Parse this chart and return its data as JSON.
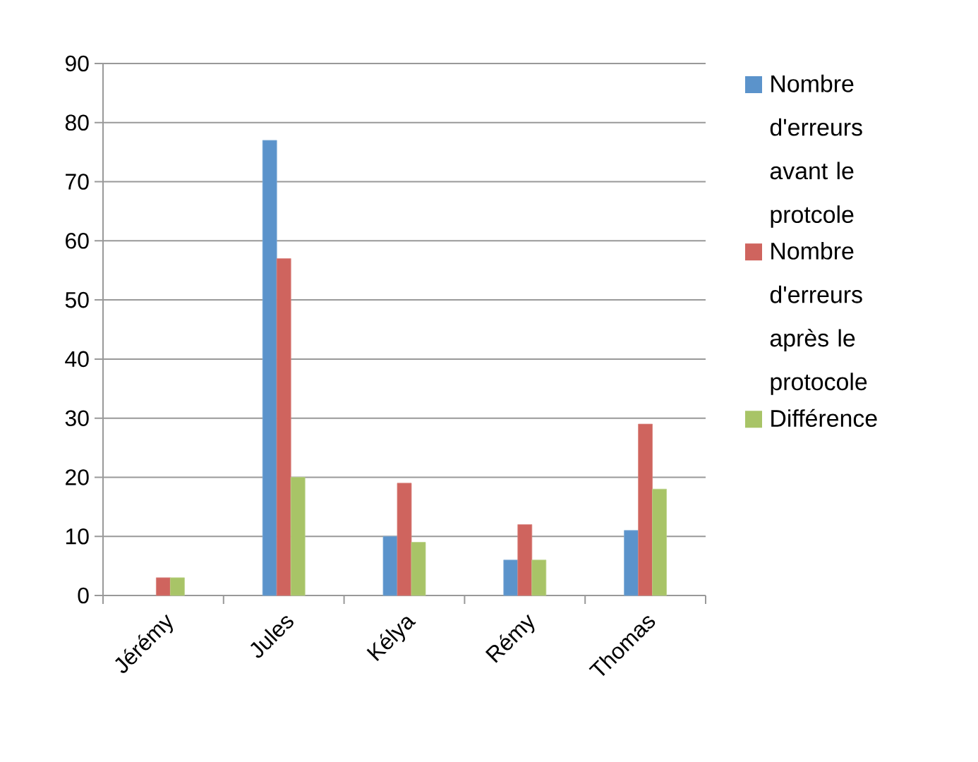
{
  "chart_data": {
    "type": "bar",
    "categories": [
      "Jérémy",
      "Jules",
      "Kélya",
      "Rémy",
      "Thomas"
    ],
    "series": [
      {
        "name": "Nombre d'erreurs avant le protcole",
        "color": "#5b93cb",
        "values": [
          null,
          77,
          10,
          6,
          11
        ]
      },
      {
        "name": "Nombre d'erreurs après le protocole",
        "color": "#cf645e",
        "values": [
          3,
          57,
          19,
          12,
          29
        ]
      },
      {
        "name": "Différence",
        "color": "#a8c467",
        "values": [
          3,
          20,
          9,
          6,
          18
        ]
      }
    ],
    "ylim": [
      0,
      90
    ],
    "yticks": [
      0,
      10,
      20,
      30,
      40,
      50,
      60,
      70,
      80,
      90
    ],
    "grid": "y",
    "legend": "right"
  }
}
